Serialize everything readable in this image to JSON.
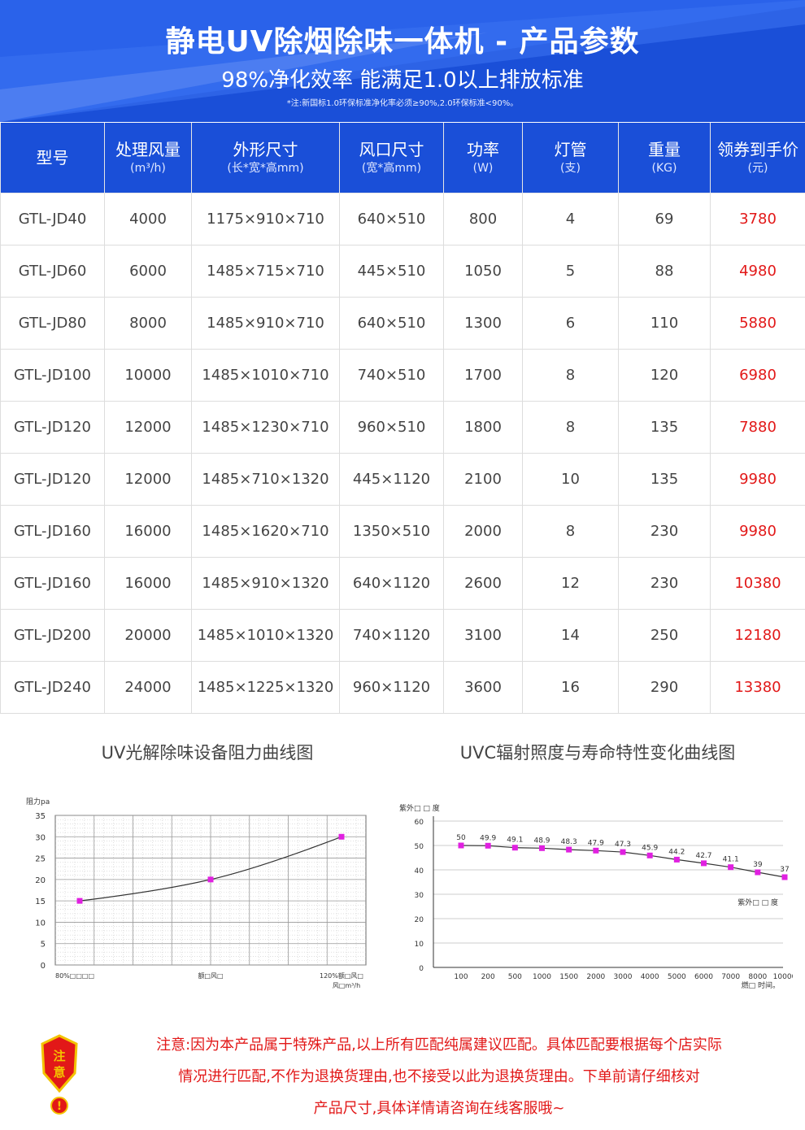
{
  "header": {
    "title": "静电UV除烟除味一体机 - 产品参数",
    "subtitle": "98%净化效率 能满足1.0以上排放标准",
    "note": "*注:新国标1.0环保标准净化率必须≥90%,2.0环保标准<90%。",
    "bg_color": "#1a4fd8"
  },
  "table": {
    "columns": [
      {
        "label": "型号",
        "unit": ""
      },
      {
        "label": "处理风量",
        "unit": "(m³/h)"
      },
      {
        "label": "外形尺寸",
        "unit": "(长*宽*高mm)"
      },
      {
        "label": "风口尺寸",
        "unit": "(宽*高mm)"
      },
      {
        "label": "功率",
        "unit": "(W)"
      },
      {
        "label": "灯管",
        "unit": "(支)"
      },
      {
        "label": "重量",
        "unit": "(KG)"
      },
      {
        "label": "领券到手价",
        "unit": "(元)"
      }
    ],
    "rows": [
      [
        "GTL-JD40",
        "4000",
        "1175×910×710",
        "640×510",
        "800",
        "4",
        "69",
        "3780"
      ],
      [
        "GTL-JD60",
        "6000",
        "1485×715×710",
        "445×510",
        "1050",
        "5",
        "88",
        "4980"
      ],
      [
        "GTL-JD80",
        "8000",
        "1485×910×710",
        "640×510",
        "1300",
        "6",
        "110",
        "5880"
      ],
      [
        "GTL-JD100",
        "10000",
        "1485×1010×710",
        "740×510",
        "1700",
        "8",
        "120",
        "6980"
      ],
      [
        "GTL-JD120",
        "12000",
        "1485×1230×710",
        "960×510",
        "1800",
        "8",
        "135",
        "7880"
      ],
      [
        "GTL-JD120",
        "12000",
        "1485×710×1320",
        "445×1120",
        "2100",
        "10",
        "135",
        "9980"
      ],
      [
        "GTL-JD160",
        "16000",
        "1485×1620×710",
        "1350×510",
        "2000",
        "8",
        "230",
        "9980"
      ],
      [
        "GTL-JD160",
        "16000",
        "1485×910×1320",
        "640×1120",
        "2600",
        "12",
        "230",
        "10380"
      ],
      [
        "GTL-JD200",
        "20000",
        "1485×1010×1320",
        "740×1120",
        "3100",
        "14",
        "250",
        "12180"
      ],
      [
        "GTL-JD240",
        "24000",
        "1485×1225×1320",
        "960×1120",
        "3600",
        "16",
        "290",
        "13380"
      ]
    ],
    "price_color": "#e21818"
  },
  "chart_data": [
    {
      "type": "line",
      "title": "UV光解除味设备阻力曲线图",
      "ylabel": "阻力pa",
      "xlabel": "",
      "ylim": [
        0,
        35
      ],
      "yticks": [
        0,
        5,
        10,
        15,
        20,
        25,
        30,
        35
      ],
      "x_labels": [
        "80%□□□□",
        "额□风□",
        "120%额□风□",
        "风□m³/h"
      ],
      "x": [
        0,
        0.5,
        1
      ],
      "values": [
        15,
        20,
        30
      ],
      "grid": true,
      "marker_color": "#e020e0"
    },
    {
      "type": "line",
      "title": "UVC辐射照度与寿命特性变化曲线图",
      "ylabel": "紫外□ □ 度",
      "series_label": "紫外□ □ 度",
      "xlabel": "燃□ 时间。",
      "ylim": [
        0,
        60
      ],
      "yticks": [
        0,
        10,
        20,
        30,
        40,
        50,
        60
      ],
      "categories": [
        "100",
        "200",
        "500",
        "1000",
        "1500",
        "2000",
        "3000",
        "4000",
        "5000",
        "6000",
        "7000",
        "8000",
        "10000"
      ],
      "values": [
        50,
        49.9,
        49.1,
        48.9,
        48.3,
        47.9,
        47.3,
        45.9,
        44.2,
        42.7,
        41.1,
        39,
        37
      ],
      "data_labels": [
        "50",
        "49.9",
        "49.1",
        "48.9",
        "48.3",
        "47.9",
        "47.3",
        "45.9",
        "44.2",
        "42.7",
        "41.1",
        "39",
        "37"
      ],
      "marker_color": "#e020e0"
    }
  ],
  "notice": {
    "badge": "注意",
    "badge_mark": "!",
    "lines": [
      "注意:因为本产品属于特殊产品,以上所有匹配纯属建议匹配。具体匹配要根据每个店实际",
      "情况进行匹配,不作为退换货理由,也不接受以此为退换货理由。下单前请仔细核对",
      "产品尺寸,具体详情请咨询在线客服哦~"
    ]
  }
}
